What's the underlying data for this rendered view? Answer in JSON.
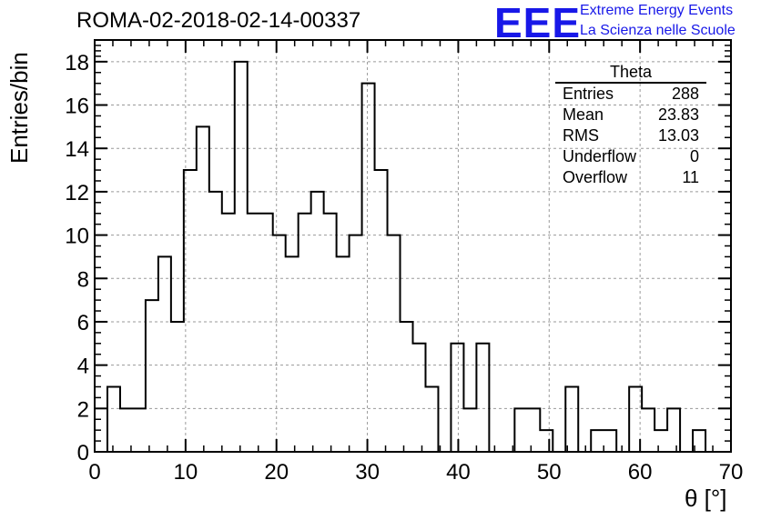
{
  "title": "ROMA-02-2018-02-14-00337",
  "logo": {
    "mark": "EEE",
    "line1": "Extreme Energy Events",
    "line2": "La Scienza nelle Scuole"
  },
  "stats": {
    "title": "Theta",
    "rows": [
      {
        "label": "Entries",
        "value": "288"
      },
      {
        "label": "Mean",
        "value": "23.83"
      },
      {
        "label": "RMS",
        "value": "13.03"
      },
      {
        "label": "Underflow",
        "value": "0"
      },
      {
        "label": "Overflow",
        "value": "11"
      }
    ]
  },
  "chart_data": {
    "type": "bar",
    "style": "histogram-step",
    "xlabel": "θ [°]",
    "ylabel": "Entries/bin",
    "xlim": [
      0,
      70
    ],
    "ylim": [
      0,
      19
    ],
    "grid": true,
    "bin_width": 1.4,
    "bin_edges_start": 1.4,
    "x_ticks": [
      0,
      10,
      20,
      30,
      40,
      50,
      60,
      70
    ],
    "y_ticks": [
      0,
      2,
      4,
      6,
      8,
      10,
      12,
      14,
      16,
      18
    ],
    "values": [
      3,
      2,
      2,
      7,
      9,
      6,
      13,
      15,
      12,
      11,
      18,
      11,
      11,
      10,
      9,
      11,
      12,
      11,
      9,
      10,
      17,
      13,
      10,
      6,
      5,
      3,
      0,
      5,
      2,
      5,
      0,
      0,
      2,
      2,
      1,
      0,
      3,
      0,
      1,
      1,
      0,
      3,
      2,
      1,
      2,
      0,
      1
    ],
    "line_color": "#000000",
    "grid_color": "#9a9a9a"
  }
}
